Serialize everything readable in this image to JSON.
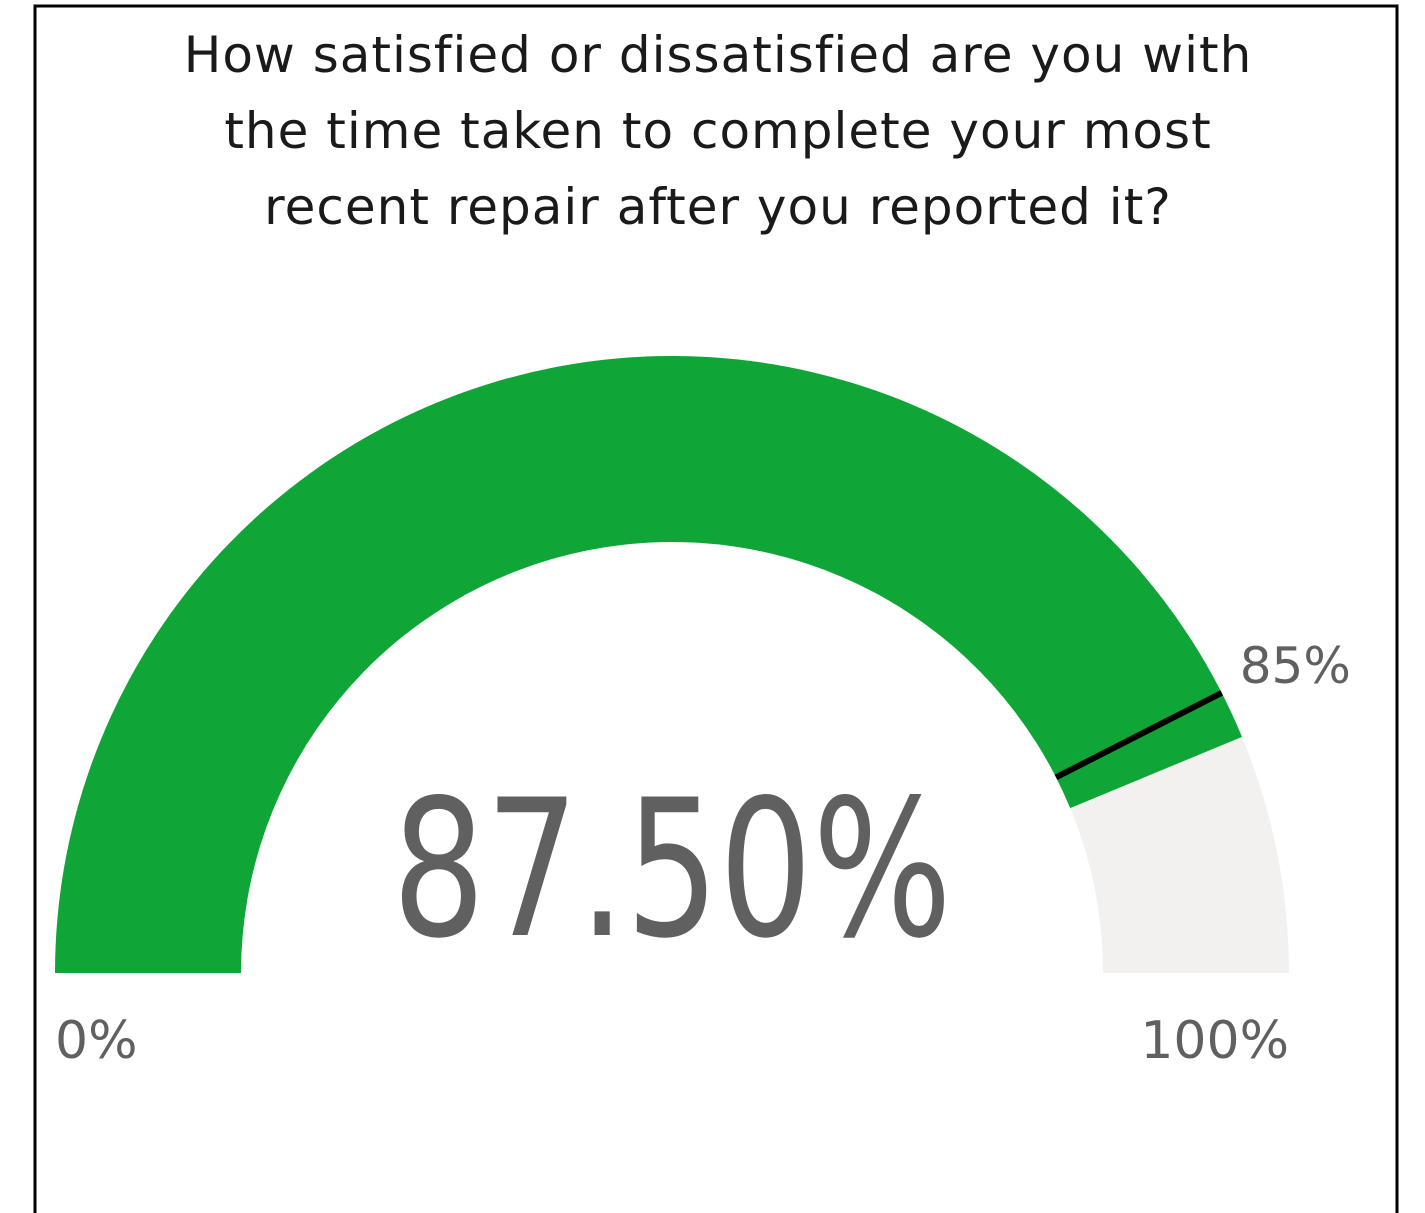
{
  "chart_data": {
    "type": "gauge",
    "title": [
      "How satisfied or dissatisfied are you with",
      "the time taken to complete your most",
      "recent repair after you reported it?"
    ],
    "value": 87.5,
    "value_label": "87.50%",
    "min": {
      "value": 0,
      "label": "0%"
    },
    "max": {
      "value": 100,
      "label": "100%"
    },
    "target": {
      "value": 85,
      "label": "85%"
    },
    "color": "#10a537",
    "track_color": "#f2f1f0",
    "target_color": "#000000"
  }
}
